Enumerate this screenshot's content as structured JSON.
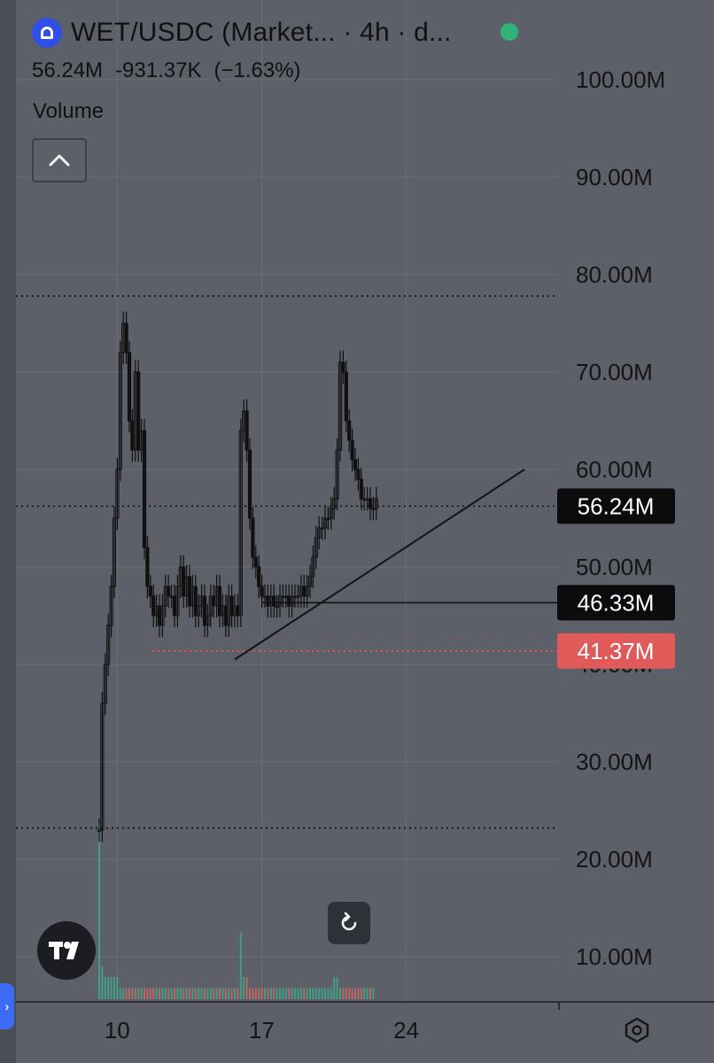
{
  "header": {
    "symbol": "WET/USDC (Market... · 4h · d...",
    "quote_last": "56.24M",
    "quote_change": "-931.37K",
    "quote_change_pct": "(−1.63%)",
    "volume_label": "Volume"
  },
  "icons": {
    "logo": "wet-token-icon",
    "collapse": "chevron-up-icon",
    "tradingview": "tradingview-logo-icon",
    "reset": "reset-rotate-icon",
    "settings": "settings-hexagon-icon",
    "side_tab": "chevron-right-icon"
  },
  "colors": {
    "background": "#5d6069",
    "candle": "#111111",
    "accent_red": "#e05a5a",
    "live_green": "#2fb37a"
  },
  "side_tab_glyph": "›",
  "chart_data": {
    "type": "candlestick",
    "y_unit": "M",
    "ylim": [
      7,
      102
    ],
    "yticks": [
      "100.00M",
      "90.00M",
      "80.00M",
      "70.00M",
      "60.00M",
      "50.00M",
      "40.00M",
      "30.00M",
      "20.00M",
      "10.00M"
    ],
    "ytick_values": [
      100,
      90,
      80,
      70,
      60,
      50,
      40,
      30,
      20,
      10
    ],
    "x_ticks": [
      "10",
      "17",
      "24"
    ],
    "x_tick_index": [
      3,
      51,
      99
    ],
    "x_count": 125,
    "series": [
      {
        "name": "price",
        "values": [
          23,
          36,
          40,
          44,
          48,
          55,
          60,
          72,
          75,
          72,
          65,
          62,
          70,
          62,
          64,
          52,
          48,
          47,
          45,
          46,
          44,
          46,
          48,
          47,
          47,
          45,
          48,
          50,
          47,
          49,
          46,
          48,
          45,
          46,
          47,
          44,
          45,
          47,
          46,
          48,
          45,
          46,
          44,
          47,
          45,
          46,
          45,
          64,
          66,
          62,
          55,
          51,
          50,
          48,
          47,
          47,
          46,
          47,
          46,
          46,
          47,
          47,
          47,
          46,
          47,
          47,
          47,
          48,
          47,
          48,
          49,
          51,
          53,
          54,
          54,
          55,
          55,
          56,
          57,
          62,
          71,
          70,
          65,
          63,
          61,
          60,
          59,
          57,
          57,
          57,
          56,
          56,
          57
        ]
      }
    ],
    "candle_start_index": 0,
    "volume": [
      16,
      3,
      2,
      2,
      2,
      2,
      2,
      1,
      1,
      1,
      1,
      1,
      1,
      1,
      1,
      1,
      1,
      1,
      1,
      1,
      1,
      1,
      1,
      1,
      1,
      1,
      1,
      1,
      1,
      1,
      1,
      1,
      1,
      1,
      1,
      1,
      1,
      1,
      1,
      1,
      1,
      1,
      1,
      1,
      1,
      1,
      1,
      6,
      2,
      2,
      1,
      1,
      1,
      1,
      1,
      1,
      1,
      1,
      1,
      1,
      1,
      1,
      1,
      1,
      1,
      1,
      1,
      1,
      1,
      1,
      1,
      1,
      1,
      1,
      1,
      1,
      1,
      1,
      2,
      2,
      1,
      1,
      1,
      1,
      1,
      1,
      1,
      1,
      1,
      1,
      1,
      1
    ],
    "horizontal_lines": [
      {
        "value": 77.8,
        "style": "dotted"
      },
      {
        "value": 56.24,
        "style": "dotted",
        "label": "56.24M",
        "badge": "black"
      },
      {
        "value": 46.33,
        "style": "solid",
        "label": "46.33M",
        "badge": "black"
      },
      {
        "value": 41.37,
        "style": "dotted-red",
        "label": "41.37M",
        "badge": "red"
      },
      {
        "value": 23.2,
        "style": "dotted"
      }
    ],
    "trend_line": {
      "from": [
        40.5,
        45
      ],
      "to": [
        60,
        100
      ]
    },
    "grid": true,
    "legend": "none"
  }
}
